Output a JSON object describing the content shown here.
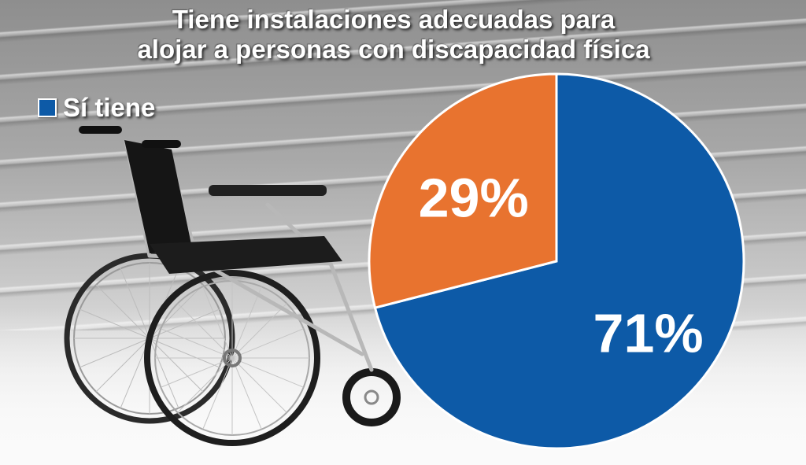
{
  "chart_data": {
    "type": "pie",
    "title": "Tiene instalaciones adecuadas para alojar a personas con discapacidad física",
    "title_lines": [
      "Tiene instalaciones adecuadas para",
      "alojar a personas con discapacidad física"
    ],
    "legend": [
      {
        "label": "Sí tiene",
        "color": "#0d5aa7"
      }
    ],
    "slices": [
      {
        "label": "71%",
        "value": 71,
        "color": "#0d5aa7"
      },
      {
        "label": "29%",
        "value": 29,
        "color": "#e8732f"
      }
    ]
  }
}
